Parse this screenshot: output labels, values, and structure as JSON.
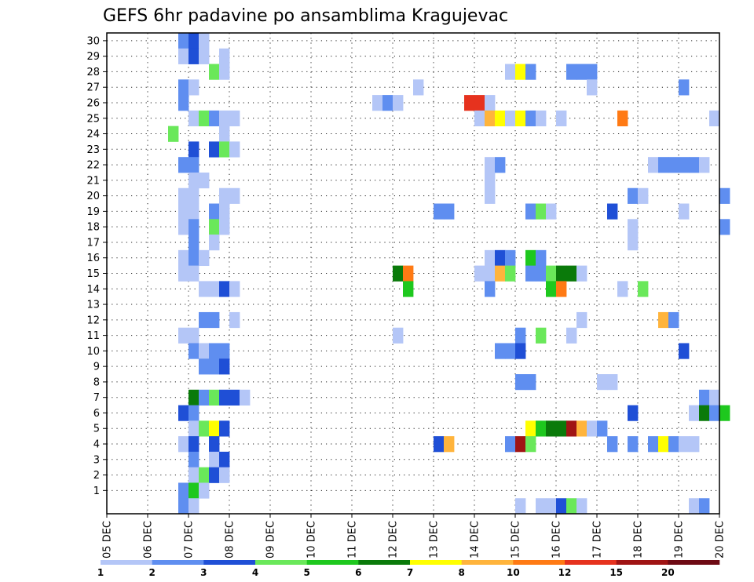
{
  "chart_data": {
    "type": "heatmap",
    "title": "GEFS 6hr padavine po ansamblima Kragujevac",
    "xlabel": "",
    "ylabel": "",
    "x_ticks": [
      "05 DEC",
      "06 DEC",
      "07 DEC",
      "08 DEC",
      "09 DEC",
      "10 DEC",
      "11 DEC",
      "12 DEC",
      "13 DEC",
      "14 DEC",
      "15 DEC",
      "16 DEC",
      "17 DEC",
      "18 DEC",
      "19 DEC",
      "20 DEC"
    ],
    "y_ticks": [
      "1",
      "2",
      "3",
      "4",
      "5",
      "6",
      "7",
      "8",
      "9",
      "10",
      "11",
      "12",
      "13",
      "14",
      "15",
      "16",
      "17",
      "18",
      "19",
      "20",
      "21",
      "22",
      "23",
      "24",
      "25",
      "26",
      "27",
      "28",
      "29",
      "30"
    ],
    "members": 30,
    "time_step_hours": 6,
    "grid": true,
    "colorbar": {
      "labels": [
        "1",
        "2",
        "3",
        "4",
        "5",
        "6",
        "7",
        "8",
        "10",
        "12",
        "15",
        "20"
      ],
      "colors": [
        "#b4c6f7",
        "#5f8ef0",
        "#1f4fd6",
        "#6ae85a",
        "#1ec81e",
        "#0a7a0a",
        "#ffff00",
        "#ffb43c",
        "#ff7a14",
        "#e6321e",
        "#a01414",
        "#6e0a14"
      ]
    },
    "cells_note": "each cell = [member, 6h step index from 05 DEC 00Z, color class 1-12]",
    "cells": [
      [
        30,
        7,
        2
      ],
      [
        30,
        8,
        3
      ],
      [
        30,
        9,
        1
      ],
      [
        29,
        7,
        1
      ],
      [
        29,
        8,
        3
      ],
      [
        29,
        9,
        1
      ],
      [
        29,
        11,
        1
      ],
      [
        28,
        10,
        4
      ],
      [
        28,
        11,
        1
      ],
      [
        28,
        39,
        1
      ],
      [
        28,
        40,
        7
      ],
      [
        28,
        41,
        2
      ],
      [
        28,
        45,
        2
      ],
      [
        28,
        46,
        2
      ],
      [
        28,
        47,
        2
      ],
      [
        27,
        7,
        2
      ],
      [
        27,
        8,
        1
      ],
      [
        27,
        30,
        1
      ],
      [
        27,
        47,
        1
      ],
      [
        27,
        56,
        2
      ],
      [
        26,
        7,
        2
      ],
      [
        26,
        26,
        1
      ],
      [
        26,
        27,
        2
      ],
      [
        26,
        28,
        1
      ],
      [
        26,
        35,
        10
      ],
      [
        26,
        36,
        10
      ],
      [
        26,
        37,
        1
      ],
      [
        25,
        8,
        1
      ],
      [
        25,
        9,
        4
      ],
      [
        25,
        10,
        2
      ],
      [
        25,
        11,
        1
      ],
      [
        25,
        12,
        1
      ],
      [
        25,
        36,
        1
      ],
      [
        25,
        37,
        8
      ],
      [
        25,
        38,
        7
      ],
      [
        25,
        39,
        1
      ],
      [
        25,
        40,
        7
      ],
      [
        25,
        41,
        2
      ],
      [
        25,
        42,
        1
      ],
      [
        25,
        44,
        1
      ],
      [
        25,
        50,
        9
      ],
      [
        25,
        59,
        1
      ],
      [
        24,
        6,
        4
      ],
      [
        24,
        11,
        1
      ],
      [
        23,
        8,
        3
      ],
      [
        23,
        10,
        3
      ],
      [
        23,
        11,
        4
      ],
      [
        23,
        12,
        1
      ],
      [
        22,
        7,
        2
      ],
      [
        22,
        8,
        2
      ],
      [
        22,
        37,
        1
      ],
      [
        22,
        38,
        2
      ],
      [
        22,
        53,
        1
      ],
      [
        22,
        54,
        2
      ],
      [
        22,
        55,
        2
      ],
      [
        22,
        56,
        2
      ],
      [
        22,
        57,
        2
      ],
      [
        22,
        58,
        1
      ],
      [
        21,
        8,
        1
      ],
      [
        21,
        9,
        1
      ],
      [
        21,
        37,
        1
      ],
      [
        20,
        7,
        1
      ],
      [
        20,
        8,
        1
      ],
      [
        20,
        11,
        1
      ],
      [
        20,
        12,
        1
      ],
      [
        20,
        37,
        1
      ],
      [
        20,
        51,
        2
      ],
      [
        20,
        52,
        1
      ],
      [
        20,
        60,
        2
      ],
      [
        19,
        7,
        1
      ],
      [
        19,
        8,
        1
      ],
      [
        19,
        10,
        2
      ],
      [
        19,
        11,
        1
      ],
      [
        19,
        32,
        2
      ],
      [
        19,
        33,
        2
      ],
      [
        19,
        41,
        2
      ],
      [
        19,
        42,
        4
      ],
      [
        19,
        43,
        1
      ],
      [
        19,
        49,
        3
      ],
      [
        19,
        56,
        1
      ],
      [
        18,
        7,
        1
      ],
      [
        18,
        8,
        2
      ],
      [
        18,
        10,
        4
      ],
      [
        18,
        11,
        1
      ],
      [
        18,
        51,
        1
      ],
      [
        18,
        60,
        2
      ],
      [
        17,
        8,
        2
      ],
      [
        17,
        10,
        1
      ],
      [
        17,
        51,
        1
      ],
      [
        16,
        7,
        1
      ],
      [
        16,
        8,
        2
      ],
      [
        16,
        9,
        1
      ],
      [
        16,
        37,
        1
      ],
      [
        16,
        38,
        3
      ],
      [
        16,
        39,
        2
      ],
      [
        16,
        41,
        5
      ],
      [
        16,
        42,
        2
      ],
      [
        15,
        7,
        1
      ],
      [
        15,
        8,
        1
      ],
      [
        15,
        28,
        6
      ],
      [
        15,
        29,
        9
      ],
      [
        15,
        36,
        1
      ],
      [
        15,
        37,
        1
      ],
      [
        15,
        38,
        8
      ],
      [
        15,
        39,
        4
      ],
      [
        15,
        41,
        2
      ],
      [
        15,
        42,
        2
      ],
      [
        15,
        43,
        4
      ],
      [
        15,
        44,
        6
      ],
      [
        15,
        45,
        6
      ],
      [
        15,
        46,
        1
      ],
      [
        14,
        9,
        1
      ],
      [
        14,
        10,
        1
      ],
      [
        14,
        11,
        3
      ],
      [
        14,
        12,
        1
      ],
      [
        14,
        29,
        5
      ],
      [
        14,
        37,
        2
      ],
      [
        14,
        43,
        5
      ],
      [
        14,
        44,
        9
      ],
      [
        14,
        50,
        1
      ],
      [
        14,
        52,
        4
      ],
      [
        12,
        9,
        2
      ],
      [
        12,
        10,
        2
      ],
      [
        12,
        12,
        1
      ],
      [
        12,
        46,
        1
      ],
      [
        12,
        54,
        8
      ],
      [
        12,
        55,
        2
      ],
      [
        11,
        7,
        1
      ],
      [
        11,
        8,
        1
      ],
      [
        11,
        28,
        1
      ],
      [
        11,
        40,
        2
      ],
      [
        11,
        42,
        4
      ],
      [
        11,
        45,
        1
      ],
      [
        10,
        8,
        2
      ],
      [
        10,
        9,
        1
      ],
      [
        10,
        10,
        2
      ],
      [
        10,
        11,
        2
      ],
      [
        10,
        38,
        2
      ],
      [
        10,
        39,
        2
      ],
      [
        10,
        40,
        3
      ],
      [
        10,
        56,
        3
      ],
      [
        9,
        9,
        2
      ],
      [
        9,
        10,
        2
      ],
      [
        9,
        11,
        3
      ],
      [
        8,
        40,
        2
      ],
      [
        8,
        41,
        2
      ],
      [
        8,
        48,
        1
      ],
      [
        8,
        49,
        1
      ],
      [
        7,
        8,
        6
      ],
      [
        7,
        9,
        2
      ],
      [
        7,
        10,
        4
      ],
      [
        7,
        11,
        3
      ],
      [
        7,
        12,
        3
      ],
      [
        7,
        13,
        1
      ],
      [
        7,
        58,
        2
      ],
      [
        7,
        59,
        1
      ],
      [
        6,
        7,
        3
      ],
      [
        6,
        8,
        2
      ],
      [
        6,
        51,
        3
      ],
      [
        6,
        57,
        1
      ],
      [
        6,
        58,
        6
      ],
      [
        6,
        59,
        2
      ],
      [
        6,
        60,
        5
      ],
      [
        5,
        8,
        1
      ],
      [
        5,
        9,
        4
      ],
      [
        5,
        10,
        7
      ],
      [
        5,
        11,
        3
      ],
      [
        5,
        41,
        7
      ],
      [
        5,
        42,
        5
      ],
      [
        5,
        43,
        6
      ],
      [
        5,
        44,
        6
      ],
      [
        5,
        45,
        11
      ],
      [
        5,
        46,
        8
      ],
      [
        5,
        47,
        1
      ],
      [
        5,
        48,
        2
      ],
      [
        4,
        7,
        1
      ],
      [
        4,
        8,
        3
      ],
      [
        4,
        10,
        3
      ],
      [
        4,
        32,
        3
      ],
      [
        4,
        33,
        8
      ],
      [
        4,
        39,
        2
      ],
      [
        4,
        40,
        11
      ],
      [
        4,
        41,
        4
      ],
      [
        4,
        49,
        2
      ],
      [
        4,
        51,
        2
      ],
      [
        4,
        53,
        2
      ],
      [
        4,
        54,
        7
      ],
      [
        4,
        55,
        2
      ],
      [
        4,
        56,
        1
      ],
      [
        4,
        57,
        1
      ],
      [
        3,
        8,
        2
      ],
      [
        3,
        10,
        1
      ],
      [
        3,
        11,
        3
      ],
      [
        2,
        8,
        1
      ],
      [
        2,
        9,
        4
      ],
      [
        2,
        10,
        3
      ],
      [
        2,
        11,
        1
      ],
      [
        1,
        7,
        2
      ],
      [
        1,
        8,
        5
      ],
      [
        1,
        9,
        1
      ],
      [
        0,
        7,
        2
      ],
      [
        0,
        8,
        1
      ],
      [
        0,
        40,
        1
      ],
      [
        0,
        42,
        1
      ],
      [
        0,
        43,
        1
      ],
      [
        0,
        44,
        3
      ],
      [
        0,
        45,
        4
      ],
      [
        0,
        46,
        1
      ],
      [
        0,
        57,
        1
      ],
      [
        0,
        58,
        2
      ]
    ]
  }
}
